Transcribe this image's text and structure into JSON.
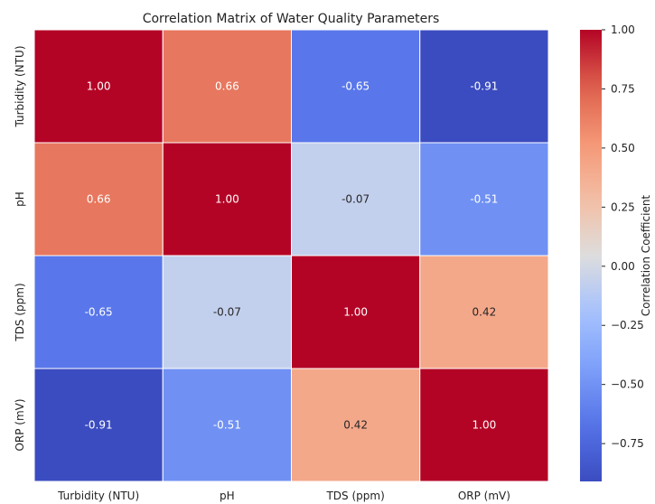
{
  "chart_data": {
    "type": "heatmap",
    "title": "Correlation Matrix of Water Quality Parameters",
    "row_labels": [
      "Turbidity (NTU)",
      "pH",
      "TDS (ppm)",
      "ORP (mV)"
    ],
    "col_labels": [
      "Turbidity (NTU)",
      "pH",
      "TDS (ppm)",
      "ORP (mV)"
    ],
    "values": [
      [
        1.0,
        0.66,
        -0.65,
        -0.91
      ],
      [
        0.66,
        1.0,
        -0.07,
        -0.51
      ],
      [
        -0.65,
        -0.07,
        1.0,
        0.42
      ],
      [
        -0.91,
        -0.51,
        0.42,
        1.0
      ]
    ],
    "value_format": "0.00",
    "colormap": "coolwarm",
    "color_range": [
      -0.91,
      1.0
    ],
    "colorbar": {
      "label": "Correlation Coefficient",
      "ticks": [
        1.0,
        0.75,
        0.5,
        0.25,
        0.0,
        -0.25,
        -0.5,
        -0.75
      ],
      "tick_labels": [
        "1.00",
        "0.75",
        "0.50",
        "0.25",
        "0.00",
        "−0.25",
        "−0.50",
        "−0.75"
      ]
    }
  }
}
